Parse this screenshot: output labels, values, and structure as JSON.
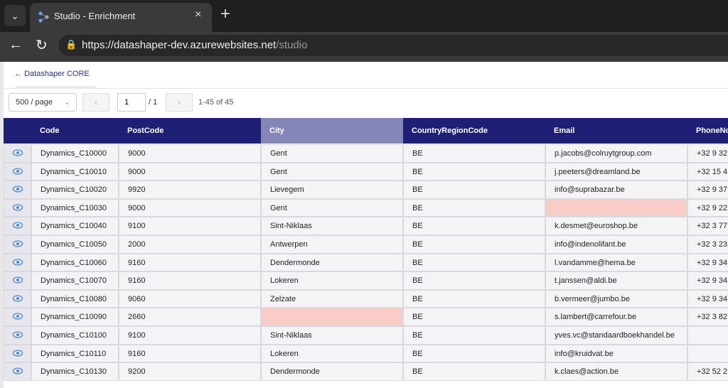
{
  "browser": {
    "tab_title": "Studio - Enrichment",
    "url_host": "https://datashaper-dev.azurewebsites.net",
    "url_path": "/studio"
  },
  "header": {
    "back_link": "Datashaper CORE"
  },
  "pagination": {
    "page_size": "500 / page",
    "page": "1",
    "total_pages": "/ 1",
    "range": "1-45 of 45"
  },
  "table": {
    "columns": [
      "Code",
      "PostCode",
      "City",
      "CountryRegionCode",
      "Email",
      "PhoneNo"
    ],
    "rows": [
      [
        "Dynamics_C10000",
        "9000",
        "Gent",
        "BE",
        "p.jacobs@colruytgroup.com",
        "+32 9 32"
      ],
      [
        "Dynamics_C10010",
        "9000",
        "Gent",
        "BE",
        "j.peeters@dreamland.be",
        "+32 15 4"
      ],
      [
        "Dynamics_C10020",
        "9920",
        "Lievegem",
        "BE",
        "info@suprabazar.be",
        "+32 9 37"
      ],
      [
        "Dynamics_C10030",
        "9000",
        "Gent",
        "BE",
        null,
        "+32 9 22"
      ],
      [
        "Dynamics_C10040",
        "9100",
        "Sint-Niklaas",
        "BE",
        "k.desmet@euroshop.be",
        "+32 3 77"
      ],
      [
        "Dynamics_C10050",
        "2000",
        "Antwerpen",
        "BE",
        "info@indenolifant.be",
        "+32 3 23"
      ],
      [
        "Dynamics_C10060",
        "9160",
        "Dendermonde",
        "BE",
        "l.vandamme@hema.be",
        "+32 9 34"
      ],
      [
        "Dynamics_C10070",
        "9160",
        "Lokeren",
        "BE",
        "t.janssen@aldi.be",
        "+32 9 34"
      ],
      [
        "Dynamics_C10080",
        "9060",
        "Zelzate",
        "BE",
        "b.vermeer@jumbo.be",
        "+32 9 34"
      ],
      [
        "Dynamics_C10090",
        "2660",
        null,
        "BE",
        "s.lambert@carrefour.be",
        "+32 3 82"
      ],
      [
        "Dynamics_C10100",
        "9100",
        "Sint-Niklaas",
        "BE",
        "yves.vc@standaardboekhandel.be",
        null
      ],
      [
        "Dynamics_C10110",
        "9160",
        "Lokeren",
        "BE",
        "info@kruidvat.be",
        null
      ],
      [
        "Dynamics_C10130",
        "9200",
        "Dendermonde",
        "BE",
        "k.claes@action.be",
        "+32 52 2"
      ]
    ]
  }
}
